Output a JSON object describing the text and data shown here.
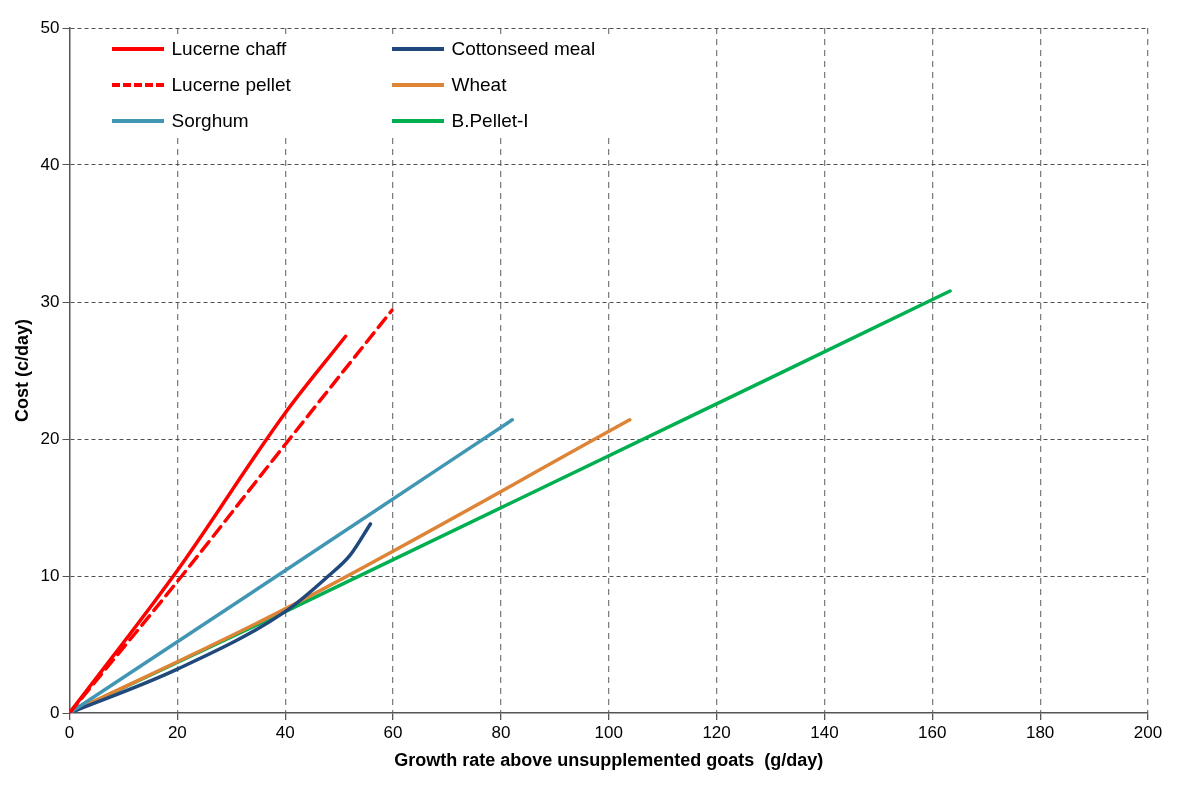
{
  "chart_data": {
    "type": "line",
    "xlabel": "Growth rate above unsupplemented goats  (g/day)",
    "ylabel": "Cost (c/day)",
    "xlim": [
      0,
      200
    ],
    "xticks": [
      0,
      20,
      40,
      60,
      80,
      100,
      120,
      140,
      160,
      180,
      200
    ],
    "ylim": [
      0,
      50
    ],
    "yticks": [
      0,
      10,
      20,
      30,
      40,
      50
    ],
    "grid": true,
    "legend": "top left",
    "marker": "none",
    "series": [
      {
        "name": "Lucerne chaff",
        "color": "#ff0000",
        "line_style": "solid",
        "x": [
          0,
          20,
          40,
          51.2
        ],
        "values": [
          0,
          10.4,
          21.9,
          27.5
        ]
      },
      {
        "name": "Lucerne pellet",
        "color": "#ff0000",
        "line_style": "dashed",
        "x": [
          0,
          20,
          40,
          59.8
        ],
        "values": [
          0,
          9.6,
          19.6,
          29.4
        ]
      },
      {
        "name": "Sorghum",
        "color": "#4196b4",
        "line_style": "solid",
        "x": [
          0,
          40,
          82.1
        ],
        "values": [
          0,
          10.4,
          21.4
        ]
      },
      {
        "name": "Cottonseed meal",
        "color": "#1f497d",
        "line_style": "solid",
        "x": [
          0,
          20,
          40,
          48,
          52,
          55.8
        ],
        "values": [
          0,
          3.2,
          7.4,
          10,
          11.5,
          13.8
        ]
      },
      {
        "name": "Wheat",
        "color": "#dd8437",
        "line_style": "solid",
        "x": [
          0,
          40,
          103.9
        ],
        "values": [
          0,
          7.6,
          21.4
        ]
      },
      {
        "name": "B.Pellet-I",
        "color": "#00b050",
        "line_style": "solid",
        "x": [
          0,
          40,
          163.3
        ],
        "values": [
          0,
          7.4,
          30.8
        ]
      }
    ]
  }
}
